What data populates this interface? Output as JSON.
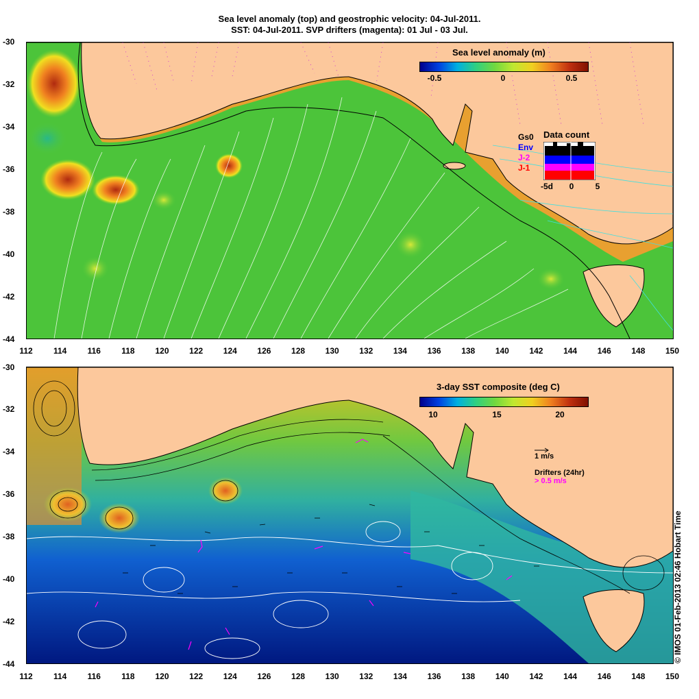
{
  "titles": {
    "line1": "Sea level anomaly (top) and geostrophic velocity: 04-Jul-2011.",
    "line2": "SST: 04-Jul-2011. SVP drifters (magenta): 01 Jul - 03 Jul."
  },
  "axes": {
    "lat_ticks": [
      "-30",
      "-32",
      "-34",
      "-36",
      "-38",
      "-40",
      "-42",
      "-44"
    ],
    "lon_ticks": [
      "112",
      "114",
      "116",
      "118",
      "120",
      "122",
      "124",
      "126",
      "128",
      "130",
      "132",
      "134",
      "136",
      "138",
      "140",
      "142",
      "144",
      "146",
      "148",
      "150"
    ]
  },
  "top_panel": {
    "colorbar": {
      "title": "Sea level anomaly (m)",
      "ticks": [
        "-0.5",
        "0",
        "0.5"
      ]
    },
    "data_count": {
      "title": "Data count",
      "satellites": [
        {
          "label": "Gs0",
          "color": "#000000"
        },
        {
          "label": "Env",
          "color": "#0000ff"
        },
        {
          "label": "J-2",
          "color": "#ff00ff"
        },
        {
          "label": "J-1",
          "color": "#ff0000"
        }
      ],
      "axis_labels": [
        "-5d",
        "0",
        "5"
      ]
    }
  },
  "bottom_panel": {
    "colorbar": {
      "title": "3-day SST composite (deg C)",
      "ticks": [
        "10",
        "15",
        "20"
      ]
    },
    "velocity_key": "1 m/s",
    "drifters_label": "Drifters (24hr)",
    "drifter_key": "> 0.5 m/s"
  },
  "colors": {
    "land": "#fcc89c",
    "drifter": "#ff00ff"
  },
  "credit": "© IMOS 01-Feb-2013 02:46 Hobart Time"
}
